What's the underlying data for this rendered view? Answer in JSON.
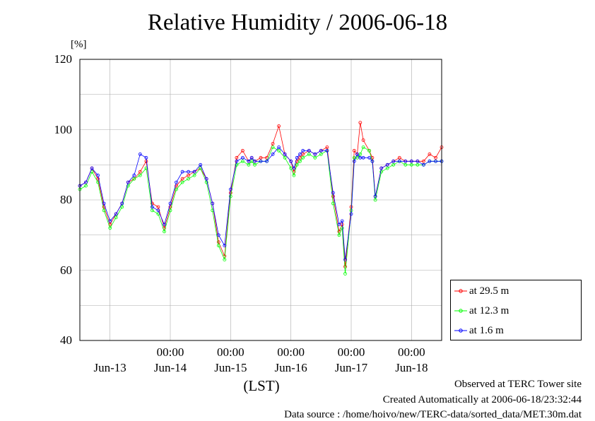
{
  "chart_data": {
    "type": "line",
    "title": "Relative Humidity / 2006-06-18",
    "ylabel": "[%]",
    "xlabel": "(LST)",
    "ylim": [
      40,
      120
    ],
    "yticks": [
      "120",
      "100",
      "80",
      "60",
      "40"
    ],
    "xlim_days": [
      12.5,
      18.5
    ],
    "x_time_ticks": [
      "00:00",
      "00:00",
      "00:00",
      "00:00",
      "00:00"
    ],
    "x_day_labels": [
      "Jun-13",
      "Jun-14",
      "Jun-15",
      "Jun-16",
      "Jun-17",
      "Jun-18"
    ],
    "grid": true,
    "legend_position": "bottom-right",
    "x_unit": "day of June (LST)",
    "series": [
      {
        "name": "at 29.5 m",
        "color": "#ff0000",
        "x": [
          12.5,
          12.6,
          12.7,
          12.8,
          12.9,
          13.0,
          13.1,
          13.2,
          13.3,
          13.4,
          13.5,
          13.6,
          13.7,
          13.8,
          13.9,
          14.0,
          14.1,
          14.2,
          14.3,
          14.4,
          14.5,
          14.6,
          14.7,
          14.8,
          14.9,
          15.0,
          15.1,
          15.2,
          15.3,
          15.35,
          15.4,
          15.5,
          15.6,
          15.7,
          15.8,
          15.9,
          16.0,
          16.05,
          16.1,
          16.15,
          16.2,
          16.3,
          16.4,
          16.5,
          16.6,
          16.7,
          16.8,
          16.85,
          16.9,
          17.0,
          17.05,
          17.1,
          17.15,
          17.2,
          17.3,
          17.35,
          17.4,
          17.5,
          17.6,
          17.7,
          17.8,
          17.9,
          18.0,
          18.1,
          18.2,
          18.3,
          18.4,
          18.5
        ],
        "values": [
          84,
          85,
          89,
          86,
          78,
          73,
          76,
          79,
          85,
          86,
          88,
          91,
          79,
          78,
          72,
          78,
          84,
          86,
          87,
          88,
          89,
          86,
          79,
          68,
          64,
          82,
          92,
          94,
          91,
          92,
          91,
          92,
          92,
          96,
          101,
          93,
          91,
          88,
          91,
          92,
          93,
          94,
          93,
          94,
          95,
          81,
          71,
          73,
          61,
          78,
          94,
          93,
          102,
          97,
          94,
          92,
          81,
          89,
          90,
          91,
          92,
          91,
          91,
          91,
          91,
          93,
          92,
          95
        ]
      },
      {
        "name": "at 12.3 m",
        "color": "#00ff00",
        "x": [
          12.5,
          12.6,
          12.7,
          12.8,
          12.9,
          13.0,
          13.1,
          13.2,
          13.3,
          13.4,
          13.5,
          13.6,
          13.7,
          13.8,
          13.9,
          14.0,
          14.1,
          14.2,
          14.3,
          14.4,
          14.5,
          14.6,
          14.7,
          14.8,
          14.9,
          15.0,
          15.1,
          15.2,
          15.3,
          15.35,
          15.4,
          15.5,
          15.6,
          15.7,
          15.8,
          15.9,
          16.0,
          16.05,
          16.1,
          16.15,
          16.2,
          16.3,
          16.4,
          16.5,
          16.6,
          16.7,
          16.8,
          16.85,
          16.9,
          17.0,
          17.05,
          17.1,
          17.15,
          17.2,
          17.3,
          17.35,
          17.4,
          17.5,
          17.6,
          17.7,
          17.8,
          17.9,
          18.0,
          18.1,
          18.2,
          18.3,
          18.4,
          18.5
        ],
        "values": [
          83,
          84,
          88,
          85,
          77,
          72,
          75,
          78,
          84,
          86,
          87,
          89,
          77,
          76,
          71,
          77,
          83,
          85,
          86,
          87,
          89,
          85,
          77,
          67,
          63,
          81,
          90,
          91,
          90,
          91,
          90,
          91,
          91,
          95,
          94,
          92,
          89,
          87,
          90,
          91,
          92,
          93,
          92,
          93,
          94,
          79,
          70,
          72,
          59,
          77,
          92,
          92,
          93,
          95,
          94,
          91,
          80,
          88,
          89,
          90,
          91,
          90,
          90,
          90,
          90,
          91,
          91,
          91
        ]
      },
      {
        "name": "at 1.6 m",
        "color": "#0000ff",
        "x": [
          12.5,
          12.6,
          12.7,
          12.8,
          12.9,
          13.0,
          13.1,
          13.2,
          13.3,
          13.4,
          13.5,
          13.6,
          13.7,
          13.8,
          13.9,
          14.0,
          14.1,
          14.2,
          14.3,
          14.4,
          14.5,
          14.6,
          14.7,
          14.8,
          14.9,
          15.0,
          15.1,
          15.2,
          15.3,
          15.35,
          15.4,
          15.5,
          15.6,
          15.7,
          15.8,
          15.9,
          16.0,
          16.05,
          16.1,
          16.15,
          16.2,
          16.3,
          16.4,
          16.5,
          16.6,
          16.7,
          16.8,
          16.85,
          16.9,
          17.0,
          17.05,
          17.1,
          17.15,
          17.2,
          17.3,
          17.35,
          17.4,
          17.5,
          17.6,
          17.7,
          17.8,
          17.9,
          18.0,
          18.1,
          18.2,
          18.3,
          18.4,
          18.5
        ],
        "values": [
          84,
          85,
          89,
          87,
          79,
          74,
          76,
          79,
          85,
          87,
          93,
          92,
          78,
          77,
          73,
          79,
          85,
          88,
          88,
          88,
          90,
          86,
          79,
          70,
          67,
          83,
          91,
          92,
          91,
          92,
          91,
          91,
          91,
          93,
          95,
          93,
          91,
          89,
          92,
          93,
          94,
          94,
          93,
          94,
          94,
          82,
          73,
          74,
          63,
          76,
          91,
          93,
          92,
          92,
          92,
          91,
          81,
          89,
          90,
          91,
          91,
          91,
          91,
          91,
          90,
          91,
          91,
          91
        ]
      }
    ]
  },
  "footer": {
    "site": "Observed at TERC Tower site",
    "created": "Created Automatically at 2006-06-18/23:32:44",
    "source": "Data source : /home/hoivo/new/TERC-data/sorted_data/MET.30m.dat"
  }
}
